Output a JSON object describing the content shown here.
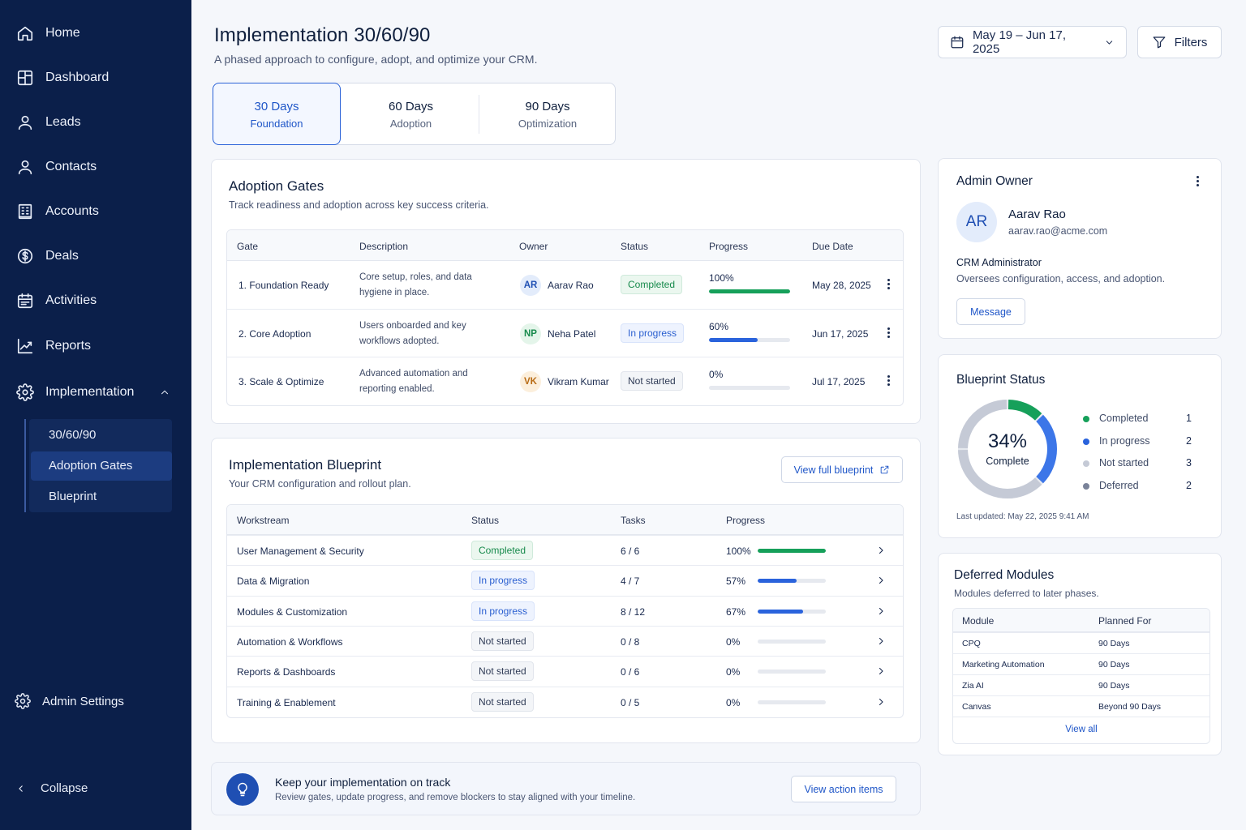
{
  "sidebar": {
    "items": [
      {
        "label": "Home"
      },
      {
        "label": "Dashboard"
      },
      {
        "label": "Leads"
      },
      {
        "label": "Contacts"
      },
      {
        "label": "Accounts"
      },
      {
        "label": "Deals"
      },
      {
        "label": "Activities"
      },
      {
        "label": "Reports"
      },
      {
        "label": "Implementation"
      }
    ],
    "sub_items": [
      {
        "label": "30/60/90"
      },
      {
        "label": "Adoption Gates"
      },
      {
        "label": "Blueprint"
      }
    ],
    "admin_settings": "Admin Settings",
    "collapse": "Collapse"
  },
  "header": {
    "title": "Implementation 30/60/90",
    "subtitle": "A phased approach to configure, adopt, and optimize your CRM.",
    "date_range": "May 19 – Jun 17, 2025",
    "filters": "Filters"
  },
  "tabs": [
    {
      "title": "30 Days",
      "subtitle": "Foundation"
    },
    {
      "title": "60 Days",
      "subtitle": "Adoption"
    },
    {
      "title": "90 Days",
      "subtitle": "Optimization"
    }
  ],
  "adoption_gates": {
    "title": "Adoption Gates",
    "subtitle": "Track readiness and adoption across key success criteria.",
    "columns": [
      "Gate",
      "Description",
      "Owner",
      "Status",
      "Progress",
      "Due Date"
    ],
    "rows": [
      {
        "gate": "1.  Foundation Ready",
        "desc1": "Core setup, roles, and data",
        "desc2": "hygiene in place.",
        "initials": "AR",
        "owner": "Aarav Rao",
        "status": "Completed",
        "progress": 100,
        "progress_label": "100%",
        "due": "May 28, 2025"
      },
      {
        "gate": "2.  Core Adoption",
        "desc1": "Users onboarded and key",
        "desc2": "workflows adopted.",
        "initials": "NP",
        "owner": "Neha Patel",
        "status": "In progress",
        "progress": 60,
        "progress_label": "60%",
        "due": "Jun 17, 2025"
      },
      {
        "gate": "3.  Scale & Optimize",
        "desc1": "Advanced automation and",
        "desc2": "reporting enabled.",
        "initials": "VK",
        "owner": "Vikram Kumar",
        "status": "Not started",
        "progress": 0,
        "progress_label": "0%",
        "due": "Jul 17, 2025"
      }
    ]
  },
  "blueprint": {
    "title": "Implementation Blueprint",
    "subtitle": "Your CRM configuration and rollout plan.",
    "view_full": "View full blueprint",
    "columns": [
      "Workstream",
      "Status",
      "Tasks",
      "Progress"
    ],
    "rows": [
      {
        "name": "User Management & Security",
        "status": "Completed",
        "tasks": "6 / 6",
        "progress": 100,
        "progress_label": "100%"
      },
      {
        "name": "Data & Migration",
        "status": "In progress",
        "tasks": "4 / 7",
        "progress": 57,
        "progress_label": "57%"
      },
      {
        "name": "Modules & Customization",
        "status": "In progress",
        "tasks": "8 / 12",
        "progress": 67,
        "progress_label": "67%"
      },
      {
        "name": "Automation & Workflows",
        "status": "Not started",
        "tasks": "0 / 8",
        "progress": 0,
        "progress_label": "0%"
      },
      {
        "name": "Reports & Dashboards",
        "status": "Not started",
        "tasks": "0 / 6",
        "progress": 0,
        "progress_label": "0%"
      },
      {
        "name": "Training & Enablement",
        "status": "Not started",
        "tasks": "0 / 5",
        "progress": 0,
        "progress_label": "0%"
      }
    ]
  },
  "banner": {
    "title": "Keep your implementation on track",
    "subtitle": "Review gates, update progress, and remove blockers to stay aligned with your timeline.",
    "action": "View action items"
  },
  "admin_owner": {
    "title": "Admin Owner",
    "initials": "AR",
    "name": "Aarav Rao",
    "email": "aarav.rao@acme.com",
    "role": "CRM Administrator",
    "role_desc": "Oversees configuration, access, and adoption.",
    "message": "Message"
  },
  "blueprint_status": {
    "title": "Blueprint Status",
    "percent": "34%",
    "percent_label": "Complete",
    "updated": "Last updated: May 22, 2025 9:41 AM",
    "legend": [
      {
        "label": "Completed",
        "value": "1",
        "color": "#16a05a"
      },
      {
        "label": "In progress",
        "value": "2",
        "color": "#2a63dc"
      },
      {
        "label": "Not started",
        "value": "3",
        "color": "#c5cad6"
      },
      {
        "label": "Deferred",
        "value": "2",
        "color": "#7a8399"
      }
    ]
  },
  "deferred": {
    "title": "Deferred Modules",
    "subtitle": "Modules deferred to later phases.",
    "columns": [
      "Module",
      "Planned For"
    ],
    "rows": [
      {
        "module": "CPQ",
        "planned": "90 Days"
      },
      {
        "module": "Marketing Automation",
        "planned": "90 Days"
      },
      {
        "module": "Zia AI",
        "planned": "90 Days"
      },
      {
        "module": "Canvas",
        "planned": "Beyond 90 Days"
      }
    ],
    "view_all": "View all"
  }
}
